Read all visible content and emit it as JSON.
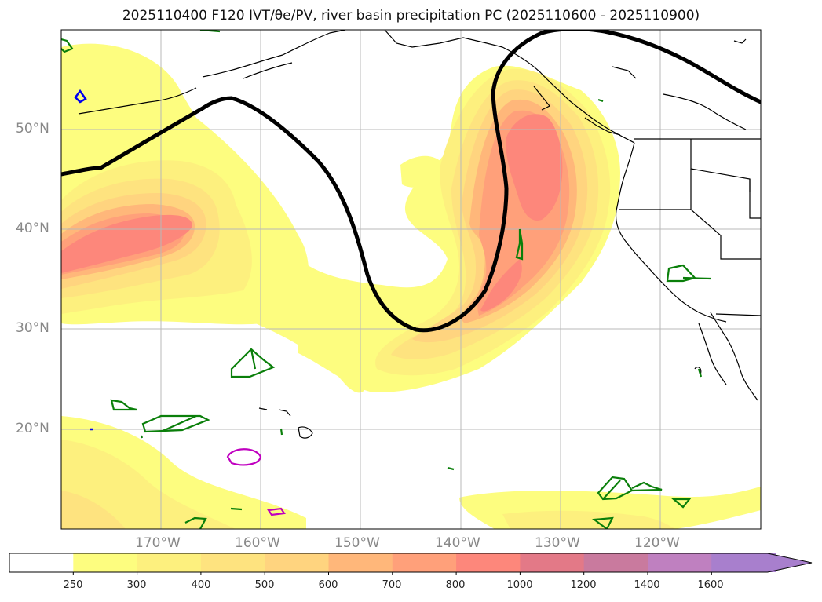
{
  "title": "2025110400 F120 IVT/θe/PV, river basin precipitation PC (2025110600 - 2025110900)",
  "latitude_labels": [
    "50°N",
    "40°N",
    "30°N",
    "20°N"
  ],
  "longitude_labels": [
    "170°W",
    "160°W",
    "150°W",
    "140°W",
    "130°W",
    "120°W"
  ],
  "colorbar": {
    "labels": [
      "250",
      "300",
      "400",
      "500",
      "600",
      "700",
      "800",
      "1000",
      "1200",
      "1400",
      "1600"
    ],
    "colors": [
      "#ffffff",
      "#fdfd7f",
      "#fdf07e",
      "#fee37f",
      "#ffd47f",
      "#ffb77a",
      "#ffa07a",
      "#fd877b",
      "#e37987",
      "#c97a9e",
      "#bf80c0",
      "#a87fcd"
    ],
    "extend": "max"
  },
  "contour_colors": {
    "theta_e": "#000000",
    "pv_green": "#0a7f0a",
    "pv_magenta": "#c000c0",
    "pv_blue": "#0000ee"
  }
}
